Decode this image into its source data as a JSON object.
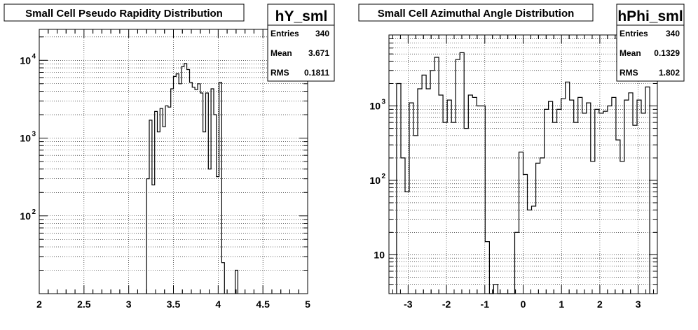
{
  "footer": "",
  "chart_data": [
    {
      "type": "step",
      "title": "Small Cell Pseudo Rapidity Distribution",
      "hist_name": "hY_sml",
      "stats": [
        {
          "label": "Entries",
          "value": "340"
        },
        {
          "label": "Mean",
          "value": "3.671"
        },
        {
          "label": "RMS",
          "value": "0.1811"
        }
      ],
      "xlim": [
        2,
        5
      ],
      "ylim": [
        10,
        25000
      ],
      "yscale": "log",
      "grid": true,
      "xticks": [
        {
          "v": 2,
          "t": "2"
        },
        {
          "v": 2.5,
          "t": "2.5"
        },
        {
          "v": 3,
          "t": "3"
        },
        {
          "v": 3.5,
          "t": "3.5"
        },
        {
          "v": 4,
          "t": "4"
        },
        {
          "v": 4.5,
          "t": "4.5"
        },
        {
          "v": 5,
          "t": "5"
        }
      ],
      "yticks": [
        {
          "v": 100,
          "base": "10",
          "exp": "2"
        },
        {
          "v": 1000,
          "base": "10",
          "exp": "3"
        },
        {
          "v": 10000,
          "base": "10",
          "exp": "4"
        }
      ],
      "bins_x": [
        3.2,
        3.23,
        3.26,
        3.29,
        3.32,
        3.35,
        3.38,
        3.41,
        3.44,
        3.47,
        3.5,
        3.53,
        3.56,
        3.59,
        3.62,
        3.65,
        3.68,
        3.71,
        3.74,
        3.77,
        3.8,
        3.83,
        3.86,
        3.89,
        3.92,
        3.95,
        3.98,
        4.01,
        4.04,
        4.07,
        4.1,
        4.13,
        4.16,
        4.19,
        4.22
      ],
      "values": [
        300,
        1700,
        250,
        2200,
        1200,
        2400,
        1400,
        2600,
        2500,
        4300,
        6200,
        6700,
        5000,
        8300,
        9100,
        7600,
        5200,
        4500,
        4200,
        5000,
        3800,
        1200,
        3800,
        400,
        4300,
        2000,
        320,
        5200,
        25,
        0,
        0,
        0,
        0,
        20
      ]
    },
    {
      "type": "step",
      "title": "Small Cell Azimuthal Angle Distribution",
      "hist_name": "hPhi_sml",
      "stats": [
        {
          "label": "Entries",
          "value": "340"
        },
        {
          "label": "Mean",
          "value": "0.1329"
        },
        {
          "label": "RMS",
          "value": "1.802"
        }
      ],
      "xlim": [
        -3.5,
        3.5
      ],
      "ylim": [
        3,
        9000
      ],
      "yscale": "log",
      "grid": true,
      "xticks": [
        {
          "v": -3,
          "t": "-3"
        },
        {
          "v": -2,
          "t": "-2"
        },
        {
          "v": -1,
          "t": "-1"
        },
        {
          "v": 0,
          "t": "0"
        },
        {
          "v": 1,
          "t": "1"
        },
        {
          "v": 2,
          "t": "2"
        },
        {
          "v": 3,
          "t": "3"
        }
      ],
      "yticks": [
        {
          "v": 10,
          "base": "10",
          "exp": ""
        },
        {
          "v": 100,
          "base": "10",
          "exp": "2"
        },
        {
          "v": 1000,
          "base": "10",
          "exp": "3"
        }
      ]
    }
  ]
}
